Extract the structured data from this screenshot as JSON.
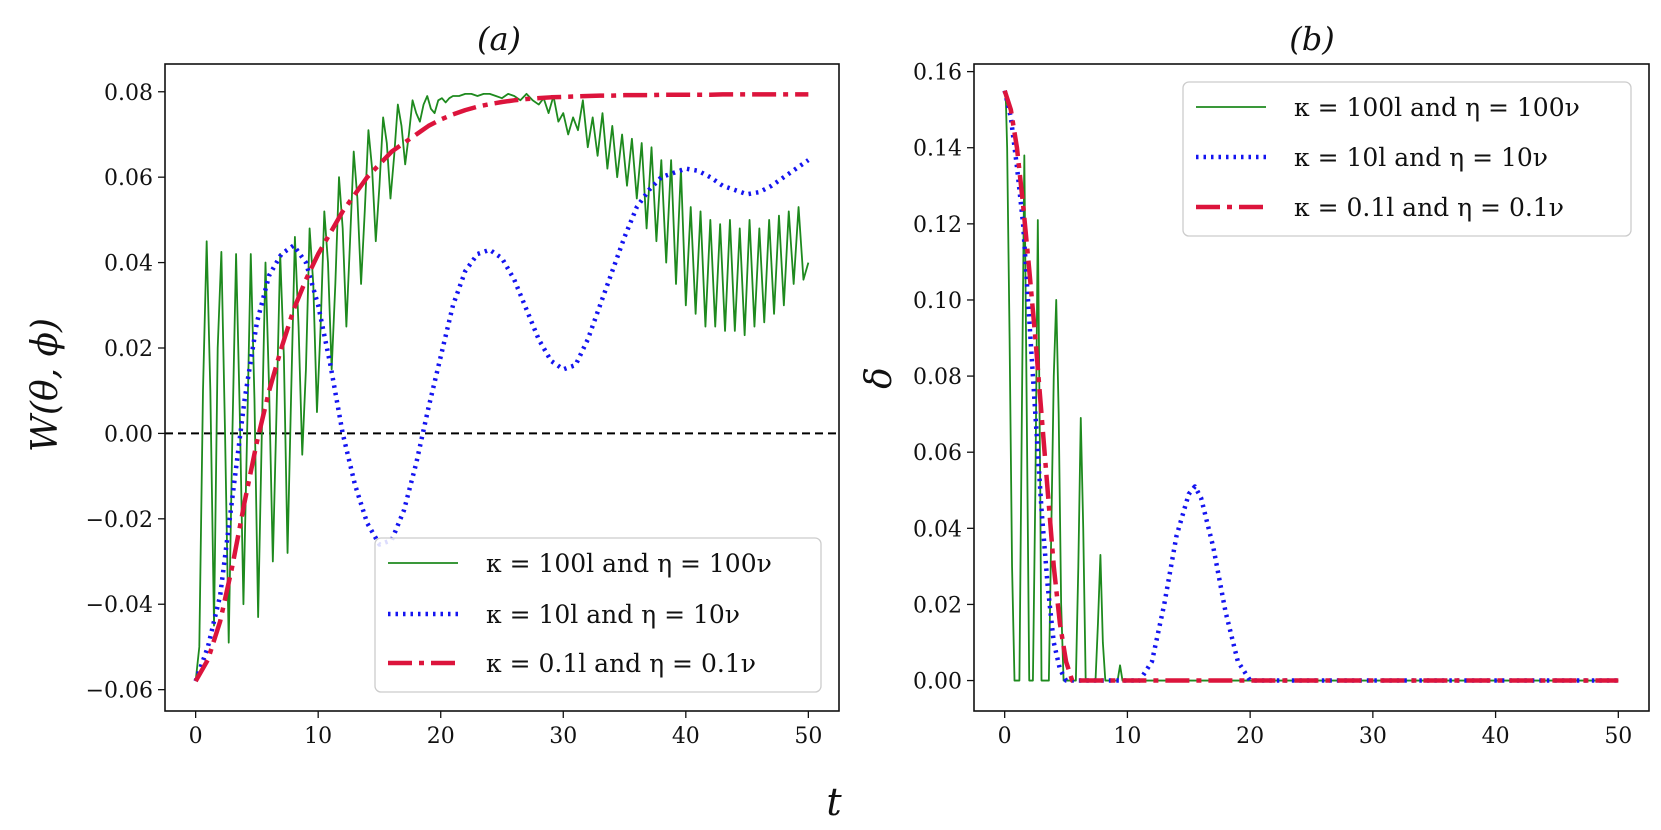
{
  "figure": {
    "shared_xlabel": "t"
  },
  "colors": {
    "green": "#1e8a1e",
    "blue": "#1414f0",
    "red": "#dc143c",
    "black": "#000000"
  },
  "chart_data": [
    {
      "type": "line",
      "panel": "a",
      "title": "(a)",
      "xlabel": "t",
      "ylabel": "W(θ, ϕ)",
      "xlim": [
        -2.5,
        52.5
      ],
      "ylim": [
        -0.065,
        0.0865
      ],
      "xticks": [
        0,
        10,
        20,
        30,
        40,
        50
      ],
      "xtick_labels": [
        "0",
        "10",
        "20",
        "30",
        "40",
        "50"
      ],
      "yticks": [
        -0.06,
        -0.04,
        -0.02,
        0.0,
        0.02,
        0.04,
        0.06,
        0.08
      ],
      "ytick_labels": [
        "−0.06",
        "−0.04",
        "−0.02",
        "0.00",
        "0.02",
        "0.04",
        "0.06",
        "0.08"
      ],
      "reference_line": {
        "y": 0.0,
        "style": "dashed",
        "color": "#000000"
      },
      "legend_position": "lower-right",
      "series": [
        {
          "name": "κ = 100l and η = 100ν",
          "color": "#1e8a1e",
          "style": "solid",
          "x": [
            0,
            0.3,
            0.6,
            0.9,
            1.2,
            1.5,
            1.8,
            2.1,
            2.4,
            2.7,
            3.0,
            3.3,
            3.6,
            3.9,
            4.2,
            4.5,
            4.8,
            5.1,
            5.4,
            5.7,
            6.0,
            6.3,
            6.6,
            6.9,
            7.2,
            7.5,
            7.8,
            8.1,
            8.4,
            8.7,
            9.0,
            9.3,
            9.6,
            9.9,
            10.2,
            10.5,
            10.8,
            11.1,
            11.4,
            11.7,
            12.0,
            12.3,
            12.6,
            12.9,
            13.2,
            13.5,
            13.8,
            14.1,
            14.4,
            14.7,
            15.0,
            15.3,
            15.6,
            15.9,
            16.2,
            16.5,
            16.8,
            17.1,
            17.4,
            17.7,
            18.0,
            18.3,
            18.6,
            18.9,
            19.2,
            19.5,
            19.8,
            20.1,
            20.4,
            20.7,
            21.0,
            21.5,
            22.0,
            22.5,
            23.0,
            23.5,
            24.0,
            24.5,
            25.0,
            25.5,
            26.0,
            26.5,
            27.0,
            27.5,
            28.0,
            28.4,
            28.8,
            29.2,
            29.6,
            30.0,
            30.4,
            30.8,
            31.2,
            31.6,
            32.0,
            32.4,
            32.8,
            33.2,
            33.6,
            34.0,
            34.4,
            34.8,
            35.2,
            35.6,
            36.0,
            36.4,
            36.8,
            37.2,
            37.6,
            38.0,
            38.4,
            38.8,
            39.2,
            39.6,
            40.0,
            40.4,
            40.8,
            41.2,
            41.6,
            42.0,
            42.4,
            42.8,
            43.2,
            43.6,
            44.0,
            44.4,
            44.8,
            45.2,
            45.6,
            46.0,
            46.4,
            46.8,
            47.2,
            47.6,
            48.0,
            48.4,
            48.8,
            49.2,
            49.6,
            50.0
          ],
          "y": [
            -0.058,
            -0.05,
            0.01,
            0.045,
            0.01,
            -0.045,
            0.02,
            0.0425,
            0.0,
            -0.049,
            0.0,
            0.042,
            0.005,
            -0.04,
            0.0,
            0.042,
            0.008,
            -0.043,
            0.0,
            0.04,
            0.01,
            -0.03,
            0.005,
            0.042,
            0.018,
            -0.028,
            0.01,
            0.046,
            0.025,
            -0.005,
            0.015,
            0.048,
            0.035,
            0.005,
            0.025,
            0.052,
            0.04,
            0.015,
            0.035,
            0.06,
            0.048,
            0.025,
            0.045,
            0.066,
            0.055,
            0.035,
            0.052,
            0.071,
            0.062,
            0.045,
            0.058,
            0.074,
            0.068,
            0.055,
            0.065,
            0.077,
            0.072,
            0.063,
            0.07,
            0.078,
            0.075,
            0.073,
            0.077,
            0.079,
            0.076,
            0.075,
            0.078,
            0.0785,
            0.0775,
            0.0785,
            0.079,
            0.079,
            0.0795,
            0.0795,
            0.079,
            0.0795,
            0.0795,
            0.079,
            0.0785,
            0.0795,
            0.079,
            0.078,
            0.0795,
            0.078,
            0.077,
            0.0785,
            0.075,
            0.079,
            0.073,
            0.075,
            0.07,
            0.074,
            0.071,
            0.078,
            0.067,
            0.074,
            0.065,
            0.075,
            0.062,
            0.072,
            0.06,
            0.07,
            0.058,
            0.069,
            0.055,
            0.068,
            0.048,
            0.067,
            0.045,
            0.064,
            0.04,
            0.064,
            0.035,
            0.062,
            0.03,
            0.053,
            0.028,
            0.052,
            0.025,
            0.05,
            0.025,
            0.049,
            0.024,
            0.05,
            0.024,
            0.048,
            0.023,
            0.05,
            0.025,
            0.048,
            0.026,
            0.05,
            0.028,
            0.051,
            0.03,
            0.052,
            0.035,
            0.053,
            0.036,
            0.04
          ]
        },
        {
          "name": "κ = 10l and η = 10ν",
          "color": "#1414f0",
          "style": "dotted",
          "x": [
            0,
            1,
            2,
            3,
            4,
            5,
            6,
            7,
            8,
            9,
            10,
            11,
            12,
            13,
            14,
            15,
            16,
            17,
            18,
            19,
            20,
            21,
            22,
            23,
            24,
            25,
            26,
            27,
            28,
            29,
            30,
            31,
            32,
            33,
            34,
            35,
            36,
            37,
            38,
            39,
            40,
            41,
            42,
            43,
            44,
            45,
            46,
            47,
            48,
            49,
            50
          ],
          "y": [
            -0.058,
            -0.05,
            -0.038,
            -0.015,
            0.008,
            0.026,
            0.037,
            0.042,
            0.044,
            0.04,
            0.03,
            0.016,
            0.0,
            -0.012,
            -0.021,
            -0.026,
            -0.025,
            -0.018,
            -0.007,
            0.006,
            0.018,
            0.03,
            0.038,
            0.042,
            0.043,
            0.041,
            0.036,
            0.029,
            0.022,
            0.017,
            0.015,
            0.016,
            0.022,
            0.03,
            0.038,
            0.046,
            0.053,
            0.057,
            0.06,
            0.061,
            0.062,
            0.0615,
            0.06,
            0.058,
            0.057,
            0.056,
            0.0565,
            0.058,
            0.06,
            0.062,
            0.064
          ]
        },
        {
          "name": "κ = 0.1l and η = 0.1ν",
          "color": "#dc143c",
          "style": "dashdot",
          "x": [
            0,
            1,
            2,
            3,
            4,
            5,
            6,
            7,
            8,
            9,
            10,
            11,
            12,
            13,
            14,
            15,
            16,
            17,
            18,
            19,
            20,
            21,
            22,
            23,
            24,
            25,
            26,
            27,
            28,
            29,
            30,
            31,
            32,
            33,
            34,
            35,
            36,
            37,
            38,
            39,
            40,
            41,
            42,
            43,
            44,
            45,
            46,
            47,
            48,
            49,
            50
          ],
          "y": [
            -0.058,
            -0.053,
            -0.044,
            -0.031,
            -0.016,
            -0.002,
            0.01,
            0.02,
            0.029,
            0.036,
            0.042,
            0.047,
            0.052,
            0.056,
            0.06,
            0.063,
            0.066,
            0.068,
            0.07,
            0.072,
            0.0735,
            0.0747,
            0.0757,
            0.0765,
            0.0771,
            0.0776,
            0.078,
            0.0783,
            0.0785,
            0.0787,
            0.0788,
            0.0789,
            0.079,
            0.0791,
            0.0791,
            0.0792,
            0.0792,
            0.0792,
            0.0793,
            0.0793,
            0.0793,
            0.0793,
            0.0793,
            0.0794,
            0.0794,
            0.0794,
            0.0794,
            0.0794,
            0.0794,
            0.0794,
            0.0794
          ]
        }
      ]
    },
    {
      "type": "line",
      "panel": "b",
      "title": "(b)",
      "xlabel": "t",
      "ylabel": "δ",
      "xlim": [
        -2.5,
        52.5
      ],
      "ylim": [
        -0.008,
        0.162
      ],
      "xticks": [
        0,
        10,
        20,
        30,
        40,
        50
      ],
      "xtick_labels": [
        "0",
        "10",
        "20",
        "30",
        "40",
        "50"
      ],
      "yticks": [
        0.0,
        0.02,
        0.04,
        0.06,
        0.08,
        0.1,
        0.12,
        0.14,
        0.16
      ],
      "ytick_labels": [
        "0.00",
        "0.02",
        "0.04",
        "0.06",
        "0.08",
        "0.10",
        "0.12",
        "0.14",
        "0.16"
      ],
      "legend_position": "upper-right",
      "series": [
        {
          "name": "κ = 100l and η = 100ν",
          "color": "#1e8a1e",
          "style": "solid",
          "x": [
            0,
            0.1,
            0.2,
            0.4,
            0.6,
            0.8,
            1.0,
            1.2,
            1.4,
            1.6,
            1.8,
            2.0,
            2.1,
            2.3,
            2.5,
            2.7,
            2.9,
            3.0,
            3.2,
            3.4,
            3.6,
            3.8,
            4.0,
            4.2,
            4.4,
            4.6,
            4.8,
            5.0,
            5.2,
            5.5,
            5.8,
            6.0,
            6.2,
            6.4,
            6.6,
            6.8,
            7.0,
            7.4,
            7.6,
            7.8,
            8.0,
            8.2,
            8.4,
            9.0,
            9.2,
            9.4,
            9.6,
            9.8,
            10.0,
            50.0
          ],
          "y": [
            0.155,
            0.152,
            0.14,
            0.09,
            0.03,
            0.0,
            0.0,
            0.0,
            0.07,
            0.138,
            0.07,
            0.0,
            0.0,
            0.0,
            0.05,
            0.121,
            0.05,
            0.0,
            0.0,
            0.0,
            0.0,
            0.04,
            0.08,
            0.1,
            0.07,
            0.02,
            0.0,
            0.0,
            0.0,
            0.0,
            0.0,
            0.03,
            0.069,
            0.04,
            0.0,
            0.0,
            0.0,
            0.0,
            0.015,
            0.033,
            0.01,
            0.0,
            0.0,
            0.0,
            0.0,
            0.004,
            0.0,
            0.0,
            0.0,
            0.0
          ]
        },
        {
          "name": "κ = 10l and η = 10ν",
          "color": "#1414f0",
          "style": "dotted",
          "x": [
            0,
            0.5,
            1.0,
            1.5,
            2.0,
            2.5,
            3.0,
            3.5,
            4.0,
            4.5,
            5.0,
            5.5,
            6.0,
            11.0,
            12.0,
            13.0,
            14.0,
            15.0,
            15.5,
            16.0,
            17.0,
            18.0,
            19.0,
            20.0,
            20.5,
            50.0
          ],
          "y": [
            0.155,
            0.148,
            0.135,
            0.12,
            0.095,
            0.07,
            0.045,
            0.025,
            0.01,
            0.003,
            0.0,
            0.0,
            0.0,
            0.0,
            0.005,
            0.02,
            0.038,
            0.049,
            0.051,
            0.048,
            0.035,
            0.018,
            0.005,
            0.0,
            0.0,
            0.0
          ]
        },
        {
          "name": "κ = 0.1l and η = 0.1ν",
          "color": "#dc143c",
          "style": "dashdot",
          "x": [
            0,
            0.5,
            1.0,
            1.5,
            2.0,
            2.5,
            3.0,
            3.5,
            4.0,
            4.5,
            5.0,
            5.5,
            6.0,
            6.5,
            7.0,
            50.0
          ],
          "y": [
            0.155,
            0.15,
            0.14,
            0.125,
            0.108,
            0.09,
            0.07,
            0.05,
            0.03,
            0.015,
            0.005,
            0.0,
            0.0,
            0.0,
            0.0,
            0.0
          ]
        }
      ]
    }
  ]
}
